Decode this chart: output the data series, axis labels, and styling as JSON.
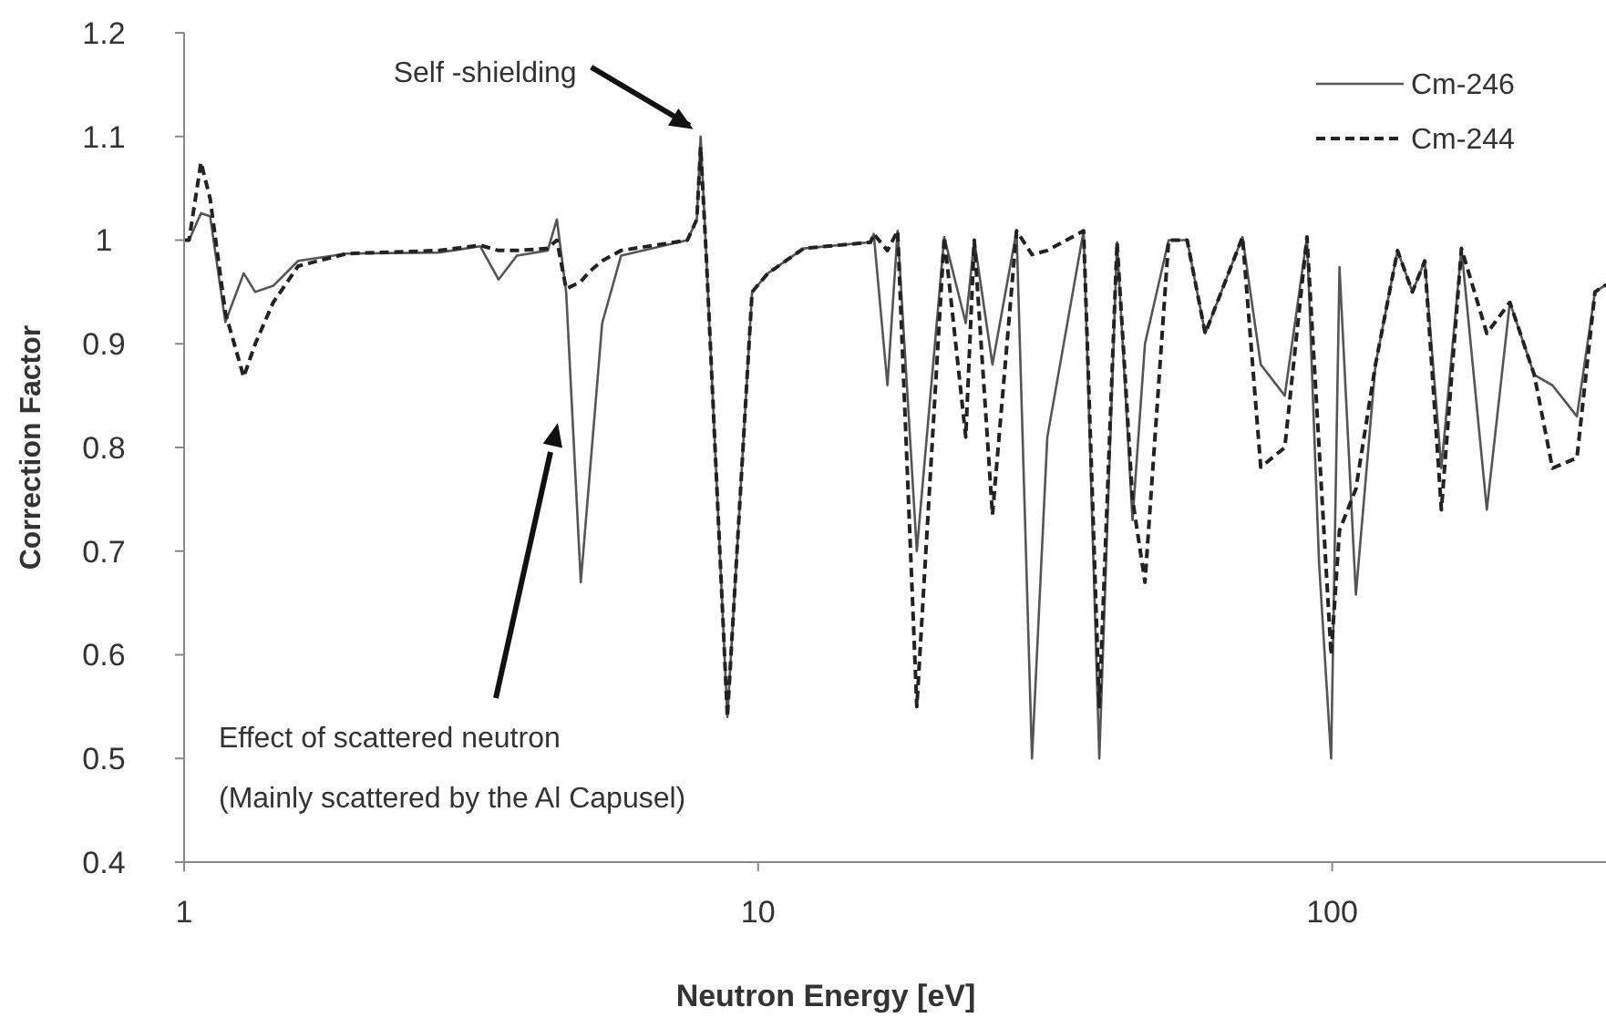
{
  "chart_data": {
    "type": "line",
    "xlabel": "Neutron Energy [eV]",
    "ylabel": "Correction Factor",
    "log": "x",
    "xlim": [
      1,
      300
    ],
    "xticks": [
      1,
      10,
      100
    ],
    "ylim": [
      0.4,
      1.2
    ],
    "yticks": [
      0.4,
      0.5,
      0.6,
      0.7,
      0.8,
      0.9,
      1,
      1.1,
      1.2
    ],
    "legend": "top right",
    "grid": false,
    "marker": "none",
    "x": [
      1,
      1.02,
      1.07,
      1.11,
      1.18,
      1.27,
      1.33,
      1.43,
      1.58,
      1.92,
      2.77,
      3.28,
      3.53,
      3.8,
      4.3,
      4.46,
      4.63,
      4.91,
      5.09,
      5.35,
      5.77,
      7.53,
      7.82,
      7.94,
      8.13,
      8.84,
      9.76,
      10.4,
      12.0,
      15.7,
      15.9,
      16.8,
      17.5,
      18.9,
      21.1,
      23.0,
      23.8,
      25.6,
      28.2,
      30.0,
      31.9,
      36.9,
      39.3,
      42.2,
      44.9,
      47.2,
      51.9,
      55.9,
      60.1,
      69.8,
      75.1,
      82.7,
      90.4,
      94.9,
      99.6,
      103,
      110,
      119,
      130,
      138,
      145,
      155,
      168,
      186,
      204,
      225,
      242,
      267,
      287,
      300
    ],
    "series": [
      {
        "name": "Cm-246",
        "color": "#555555",
        "line_style": "solid",
        "values": [
          1.0,
          1.0,
          1.026,
          1.023,
          0.921,
          0.968,
          0.95,
          0.956,
          0.98,
          0.987,
          0.988,
          0.994,
          0.962,
          0.985,
          0.99,
          1.02,
          0.95,
          0.67,
          0.775,
          0.92,
          0.985,
          1.0,
          1.02,
          1.1,
          0.98,
          0.54,
          0.95,
          0.968,
          0.992,
          0.998,
          1.006,
          0.86,
          1.009,
          0.7,
          1.003,
          0.92,
          1.0,
          0.88,
          1.009,
          0.5,
          0.81,
          1.009,
          0.5,
          0.998,
          0.73,
          0.9,
          1.0,
          1.0,
          0.91,
          1.003,
          0.88,
          0.85,
          1.003,
          0.688,
          0.5,
          0.974,
          0.658,
          0.88,
          0.99,
          0.95,
          0.98,
          0.78,
          0.992,
          0.74,
          0.94,
          0.87,
          0.86,
          0.83,
          0.95,
          0.957
        ]
      },
      {
        "name": "Cm-244",
        "color": "#222222",
        "line_style": "dashed",
        "values": [
          1.0,
          1.0,
          1.075,
          1.04,
          0.93,
          0.868,
          0.9,
          0.94,
          0.975,
          0.987,
          0.99,
          0.995,
          0.99,
          0.99,
          0.992,
          1.0,
          0.953,
          0.96,
          0.97,
          0.98,
          0.99,
          1.0,
          1.02,
          1.09,
          0.98,
          0.54,
          0.95,
          0.968,
          0.992,
          0.998,
          1.006,
          0.99,
          1.009,
          0.55,
          1.003,
          0.81,
          1.0,
          0.735,
          1.009,
          0.986,
          0.99,
          1.009,
          0.55,
          0.998,
          0.75,
          0.67,
          1.0,
          1.0,
          0.91,
          1.003,
          0.781,
          0.8,
          1.003,
          0.8,
          0.6,
          0.72,
          0.76,
          0.88,
          0.99,
          0.95,
          0.98,
          0.74,
          0.992,
          0.91,
          0.94,
          0.87,
          0.78,
          0.79,
          0.95,
          0.957
        ]
      }
    ],
    "annotations": [
      {
        "text": "Self -shielding",
        "x": 7.94,
        "y": 1.1
      },
      "Effect of scattered neutron",
      "(Mainly scattered by the Al Capusel)"
    ]
  }
}
